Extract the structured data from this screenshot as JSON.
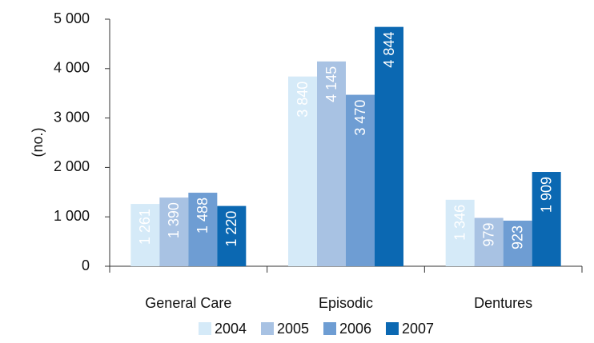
{
  "chart_data": {
    "type": "bar",
    "y_label": "(no.)",
    "categories": [
      "General Care",
      "Episodic",
      "Dentures"
    ],
    "series": [
      {
        "name": "2004",
        "color": "#d5eaf8",
        "values": [
          1261,
          3840,
          1346
        ],
        "value_labels": [
          "1 261",
          "3 840",
          "1 346"
        ]
      },
      {
        "name": "2005",
        "color": "#a8c2e3",
        "values": [
          1390,
          4145,
          979
        ],
        "value_labels": [
          "1 390",
          "4 145",
          "979"
        ]
      },
      {
        "name": "2006",
        "color": "#6e9dd3",
        "values": [
          1488,
          3470,
          923
        ],
        "value_labels": [
          "1 488",
          "3 470",
          "923"
        ]
      },
      {
        "name": "2007",
        "color": "#0b68b2",
        "values": [
          1220,
          4844,
          1909
        ],
        "value_labels": [
          "1 220",
          "4 844",
          "1 909"
        ]
      }
    ],
    "ylim": [
      0,
      5000
    ],
    "yticks": [
      0,
      {
        "value": 1000,
        "label": "1 000"
      },
      {
        "value": 2000,
        "label": "2 000"
      },
      {
        "value": 3000,
        "label": "3 000"
      },
      {
        "value": 4000,
        "label": "4 000"
      },
      {
        "value": 5000,
        "label": "5 000"
      }
    ]
  }
}
